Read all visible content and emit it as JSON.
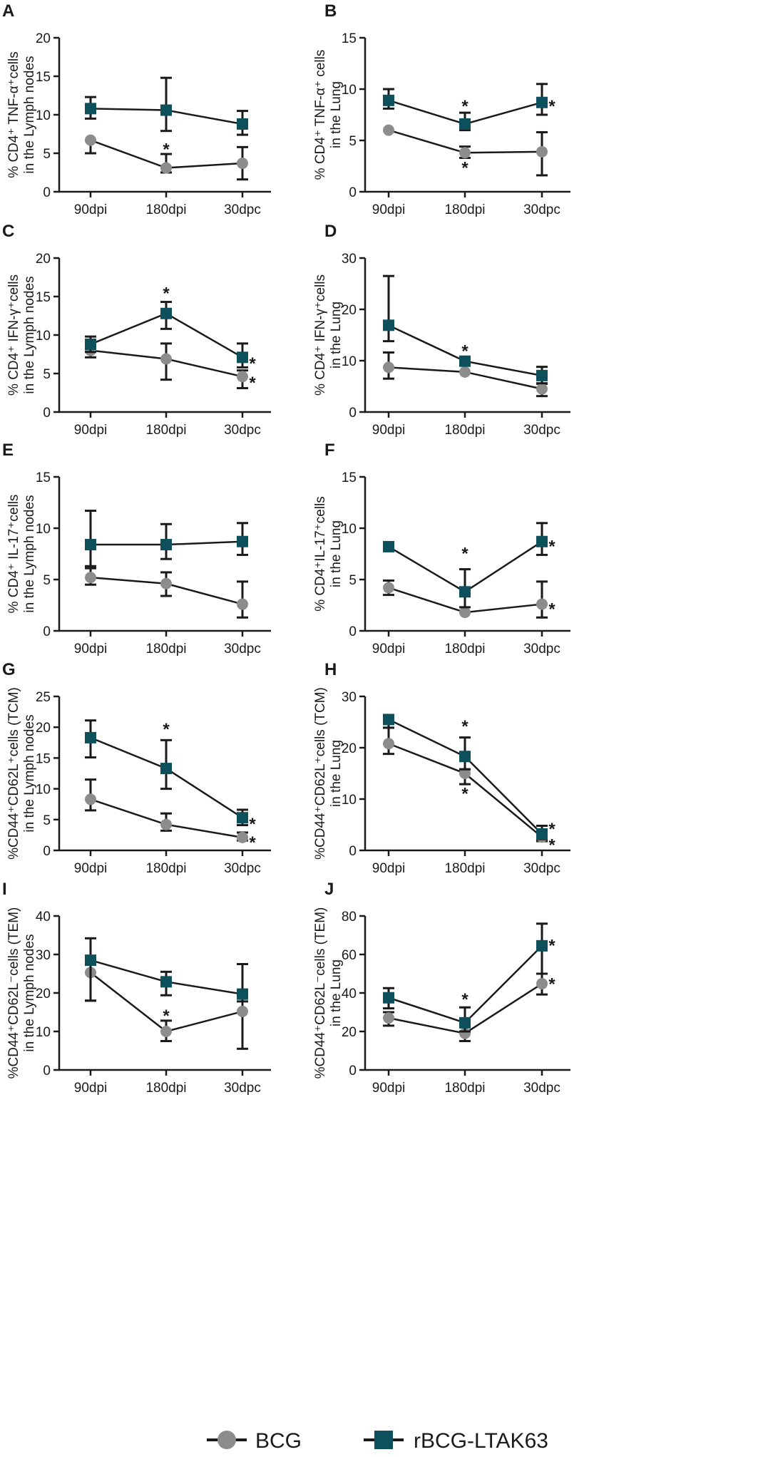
{
  "figure": {
    "colors": {
      "BCG": "#8c8c8c",
      "rBCG-LTAK63": "#0e4f5c",
      "axis": "#1a1a1a"
    },
    "legend": [
      {
        "name": "BCG",
        "label": "BCG",
        "marker": "circle"
      },
      {
        "name": "rBCG-LTAK63",
        "label": "rBCG-LTAK63",
        "marker": "square"
      }
    ]
  },
  "chart_data": [
    {
      "panel": "A",
      "type": "line",
      "ylabel_lines": [
        "% CD4⁺ TNF-α⁺cells",
        "in the Lymph nodes"
      ],
      "categories": [
        "90dpi",
        "180dpi",
        "30dpc"
      ],
      "ylim": [
        0,
        20
      ],
      "yticks": [
        0,
        5,
        10,
        15,
        20
      ],
      "series": [
        {
          "name": "BCG",
          "values": [
            6.7,
            3.1,
            3.7
          ],
          "err_low": [
            5.0,
            2.5,
            1.6
          ],
          "err_high": [
            6.7,
            4.9,
            5.8
          ]
        },
        {
          "name": "rBCG-LTAK63",
          "values": [
            10.8,
            10.6,
            8.8
          ],
          "err_low": [
            9.5,
            7.9,
            7.4
          ],
          "err_high": [
            12.3,
            14.8,
            10.5
          ]
        }
      ],
      "annotations": [
        {
          "cat": 1,
          "y": 5.6,
          "text": "*"
        }
      ]
    },
    {
      "panel": "B",
      "type": "line",
      "ylabel_lines": [
        "% CD4⁺ TNF-α⁺ cells",
        "in the Lung"
      ],
      "categories": [
        "90dpi",
        "180dpi",
        "30dpc"
      ],
      "ylim": [
        0,
        15
      ],
      "yticks": [
        0,
        5,
        10,
        15
      ],
      "series": [
        {
          "name": "BCG",
          "values": [
            6.0,
            3.8,
            3.9
          ],
          "err_low": [
            6.0,
            3.3,
            1.6
          ],
          "err_high": [
            6.0,
            4.4,
            5.8
          ]
        },
        {
          "name": "rBCG-LTAK63",
          "values": [
            8.9,
            6.6,
            8.7
          ],
          "err_low": [
            8.1,
            6.0,
            7.5
          ],
          "err_high": [
            10.0,
            7.7,
            10.5
          ]
        }
      ],
      "annotations": [
        {
          "cat": 1,
          "y": 8.4,
          "text": "*"
        },
        {
          "cat": 1,
          "y": 2.4,
          "text": "*"
        },
        {
          "cat": 2,
          "dx": 14,
          "y": 8.4,
          "text": "*"
        }
      ]
    },
    {
      "panel": "C",
      "type": "line",
      "ylabel_lines": [
        "% CD4⁺ IFN-γ⁺cells",
        "in the Lymph nodes"
      ],
      "categories": [
        "90dpi",
        "180dpi",
        "30dpc"
      ],
      "ylim": [
        0,
        20
      ],
      "yticks": [
        0,
        5,
        10,
        15,
        20
      ],
      "series": [
        {
          "name": "BCG",
          "values": [
            8.0,
            6.9,
            4.6
          ],
          "err_low": [
            7.1,
            4.2,
            3.1
          ],
          "err_high": [
            8.6,
            8.9,
            5.4
          ]
        },
        {
          "name": "rBCG-LTAK63",
          "values": [
            8.8,
            12.8,
            7.1
          ],
          "err_low": [
            7.8,
            10.8,
            5.8
          ],
          "err_high": [
            9.8,
            14.3,
            8.9
          ]
        }
      ],
      "annotations": [
        {
          "cat": 1,
          "y": 15.5,
          "text": "*"
        },
        {
          "cat": 2,
          "dx": 14,
          "y": 6.4,
          "text": "*"
        },
        {
          "cat": 2,
          "dx": 14,
          "y": 3.9,
          "text": "*"
        }
      ]
    },
    {
      "panel": "D",
      "type": "line",
      "ylabel_lines": [
        "% CD4⁺ IFN-γ⁺cells",
        "in the Lung"
      ],
      "categories": [
        "90dpi",
        "180dpi",
        "30dpc"
      ],
      "ylim": [
        0,
        30
      ],
      "yticks": [
        0,
        10,
        20,
        30
      ],
      "series": [
        {
          "name": "BCG",
          "values": [
            8.7,
            7.8,
            4.5
          ],
          "err_low": [
            6.5,
            7.8,
            3.1
          ],
          "err_high": [
            11.6,
            7.8,
            5.5
          ]
        },
        {
          "name": "rBCG-LTAK63",
          "values": [
            16.9,
            9.9,
            7.1
          ],
          "err_low": [
            13.8,
            9.9,
            5.6
          ],
          "err_high": [
            26.5,
            9.9,
            8.8
          ]
        }
      ],
      "annotations": [
        {
          "cat": 1,
          "y": 12.0,
          "text": "*"
        }
      ]
    },
    {
      "panel": "E",
      "type": "line",
      "ylabel_lines": [
        "% CD4⁺ IL-17⁺cells",
        "in the Lymph nodes"
      ],
      "categories": [
        "90dpi",
        "180dpi",
        "30dpc"
      ],
      "ylim": [
        0,
        15
      ],
      "yticks": [
        0,
        5,
        10,
        15
      ],
      "series": [
        {
          "name": "BCG",
          "values": [
            5.2,
            4.6,
            2.6
          ],
          "err_low": [
            4.5,
            3.4,
            1.3
          ],
          "err_high": [
            6.1,
            5.7,
            4.8
          ]
        },
        {
          "name": "rBCG-LTAK63",
          "values": [
            8.4,
            8.4,
            8.7
          ],
          "err_low": [
            6.3,
            7.0,
            7.4
          ],
          "err_high": [
            11.7,
            10.4,
            10.5
          ]
        }
      ],
      "annotations": []
    },
    {
      "panel": "F",
      "type": "line",
      "ylabel_lines": [
        "% CD4⁺IL-17⁺cells",
        "in the Lung"
      ],
      "categories": [
        "90dpi",
        "180dpi",
        "30dpc"
      ],
      "ylim": [
        0,
        15
      ],
      "yticks": [
        0,
        5,
        10,
        15
      ],
      "series": [
        {
          "name": "BCG",
          "values": [
            4.2,
            1.8,
            2.6
          ],
          "err_low": [
            3.5,
            1.8,
            1.3
          ],
          "err_high": [
            4.9,
            1.8,
            4.8
          ]
        },
        {
          "name": "rBCG-LTAK63",
          "values": [
            8.2,
            3.8,
            8.7
          ],
          "err_low": [
            8.2,
            2.3,
            7.4
          ],
          "err_high": [
            8.2,
            6.0,
            10.5
          ]
        }
      ],
      "annotations": [
        {
          "cat": 1,
          "y": 7.6,
          "text": "*"
        },
        {
          "cat": 2,
          "dx": 14,
          "y": 8.3,
          "text": "*"
        },
        {
          "cat": 2,
          "dx": 14,
          "y": 2.2,
          "text": "*"
        }
      ]
    },
    {
      "panel": "G",
      "type": "line",
      "ylabel_lines": [
        "%CD44⁺CD62L⁺cells (TCM)",
        "in the Lymph nodes"
      ],
      "categories": [
        "90dpi",
        "180dpi",
        "30dpc"
      ],
      "ylim": [
        0,
        25
      ],
      "yticks": [
        0,
        5,
        10,
        15,
        20,
        25
      ],
      "series": [
        {
          "name": "BCG",
          "values": [
            8.3,
            4.2,
            2.1
          ],
          "err_low": [
            6.5,
            3.2,
            1.6
          ],
          "err_high": [
            11.5,
            6.0,
            2.9
          ]
        },
        {
          "name": "rBCG-LTAK63",
          "values": [
            18.3,
            13.3,
            5.3
          ],
          "err_low": [
            15.1,
            10.0,
            4.1
          ],
          "err_high": [
            21.1,
            17.9,
            6.6
          ]
        }
      ],
      "annotations": [
        {
          "cat": 1,
          "y": 19.8,
          "text": "*"
        },
        {
          "cat": 2,
          "dx": 14,
          "y": 4.4,
          "text": "*"
        },
        {
          "cat": 2,
          "dx": 14,
          "y": 1.4,
          "text": "*"
        }
      ]
    },
    {
      "panel": "H",
      "type": "line",
      "ylabel_lines": [
        "%CD44⁺CD62L⁺cells (TCM)",
        "in the Lung"
      ],
      "categories": [
        "90dpi",
        "180dpi",
        "30dpc"
      ],
      "ylim": [
        0,
        30
      ],
      "yticks": [
        0,
        10,
        20,
        30
      ],
      "series": [
        {
          "name": "BCG",
          "values": [
            20.8,
            15.0,
            2.6
          ],
          "err_low": [
            18.8,
            12.9,
            1.8
          ],
          "err_high": [
            23.9,
            15.8,
            3.3
          ]
        },
        {
          "name": "rBCG-LTAK63",
          "values": [
            25.5,
            18.3,
            3.2
          ],
          "err_low": [
            23.9,
            15.8,
            2.2
          ],
          "err_high": [
            25.5,
            22.0,
            4.8
          ]
        }
      ],
      "annotations": [
        {
          "cat": 1,
          "y": 24.3,
          "text": "*"
        },
        {
          "cat": 1,
          "y": 11.2,
          "text": "*"
        },
        {
          "cat": 2,
          "dx": 14,
          "y": 4.3,
          "text": "*"
        },
        {
          "cat": 2,
          "dx": 14,
          "y": 1.2,
          "text": "*"
        }
      ]
    },
    {
      "panel": "I",
      "type": "line",
      "ylabel_lines": [
        "%CD44⁺CD62L⁻cells (TEM)",
        "in the Lymph nodes"
      ],
      "categories": [
        "90dpi",
        "180dpi",
        "30dpc"
      ],
      "ylim": [
        0,
        40
      ],
      "yticks": [
        0,
        10,
        20,
        30,
        40
      ],
      "series": [
        {
          "name": "BCG",
          "values": [
            25.3,
            10.0,
            15.2
          ],
          "err_low": [
            18.0,
            7.5,
            5.5
          ],
          "err_high": [
            28.2,
            12.8,
            27.5
          ]
        },
        {
          "name": "rBCG-LTAK63",
          "values": [
            28.5,
            22.9,
            19.7
          ],
          "err_low": [
            18.0,
            19.4,
            17.8
          ],
          "err_high": [
            34.2,
            25.5,
            27.5
          ]
        }
      ],
      "annotations": [
        {
          "cat": 1,
          "y": 14.3,
          "text": "*"
        }
      ]
    },
    {
      "panel": "J",
      "type": "line",
      "ylabel_lines": [
        "%CD44⁺CD62L⁻cells (TEM)",
        "in the Lung"
      ],
      "categories": [
        "90dpi",
        "180dpi",
        "30dpc"
      ],
      "ylim": [
        0,
        80
      ],
      "yticks": [
        0,
        20,
        40,
        60,
        80
      ],
      "series": [
        {
          "name": "BCG",
          "values": [
            27.0,
            19.0,
            44.8
          ],
          "err_low": [
            23.0,
            15.0,
            39.2
          ],
          "err_high": [
            30.0,
            22.5,
            50.0
          ]
        },
        {
          "name": "rBCG-LTAK63",
          "values": [
            37.5,
            24.5,
            64.5
          ],
          "err_low": [
            32.0,
            20.0,
            50.0
          ],
          "err_high": [
            42.5,
            32.5,
            76.0
          ]
        }
      ],
      "annotations": [
        {
          "cat": 1,
          "y": 37.0,
          "text": "*"
        },
        {
          "cat": 2,
          "dx": 14,
          "y": 65.0,
          "text": "*"
        },
        {
          "cat": 2,
          "dx": 14,
          "y": 45.0,
          "text": "*"
        }
      ]
    }
  ]
}
